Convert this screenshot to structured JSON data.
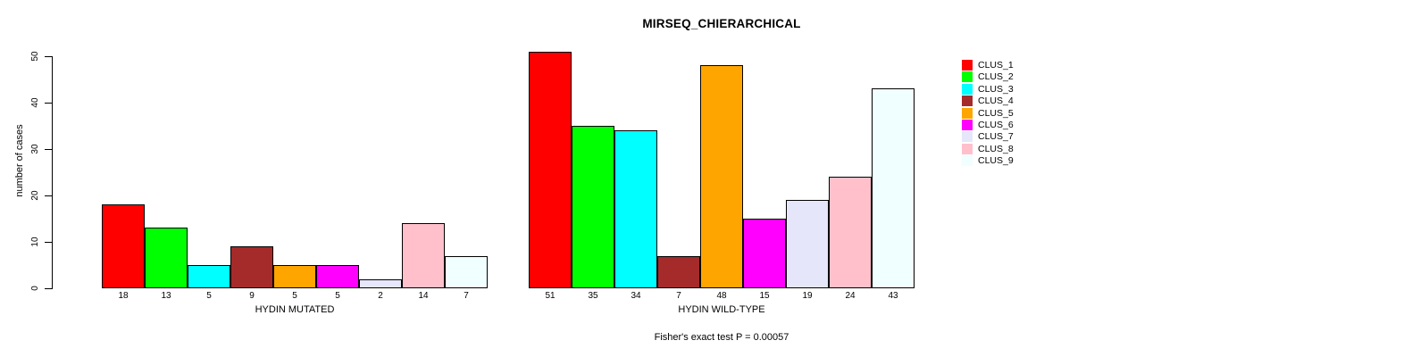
{
  "chart_data": {
    "type": "bar",
    "title": "MIRSEQ_CHIERARCHICAL",
    "ylabel": "number of cases",
    "ylim": [
      0,
      50
    ],
    "yticks": [
      0,
      10,
      20,
      30,
      40,
      50
    ],
    "grid": false,
    "legend_position": "right",
    "bar_value_labels": true,
    "series": [
      "CLUS_1",
      "CLUS_2",
      "CLUS_3",
      "CLUS_4",
      "CLUS_5",
      "CLUS_6",
      "CLUS_7",
      "CLUS_8",
      "CLUS_9"
    ],
    "series_colors": [
      "#FF0000",
      "#00FF00",
      "#00FFFF",
      "#A52A2A",
      "#FFA500",
      "#FF00FF",
      "#E6E6FA",
      "#FFC0CB",
      "#F0FFFF"
    ],
    "groups": [
      {
        "label": "HYDIN MUTATED",
        "values": [
          18,
          13,
          5,
          9,
          5,
          5,
          2,
          14,
          7
        ]
      },
      {
        "label": "HYDIN WILD-TYPE",
        "values": [
          51,
          35,
          34,
          7,
          48,
          15,
          19,
          24,
          43
        ]
      }
    ],
    "annotation": "Fisher's exact test P = 0.00057",
    "axis_color": "#000000",
    "background_color": "#FFFFFF"
  }
}
